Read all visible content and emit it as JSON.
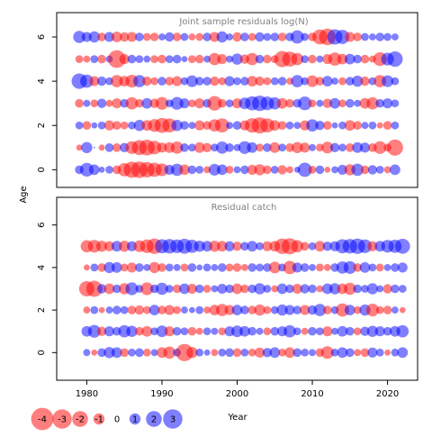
{
  "chart_data": {
    "type": "scatter",
    "ylabel": "Age",
    "xlabel": "Year",
    "x_ticks": [
      1980,
      1990,
      2000,
      2010,
      2020
    ],
    "xlim": [
      1976,
      2024
    ],
    "colors": {
      "positive": "#0000ff",
      "negative": "#ff0000"
    },
    "panels": [
      {
        "title": "Joint sample residuals log(N)",
        "y_ticks": [
          0,
          2,
          4,
          6
        ],
        "ylim": [
          -0.8,
          7.1
        ],
        "ages": [
          0,
          1,
          2,
          3,
          4,
          5,
          6
        ],
        "years_from": 1979,
        "years_to": 2021,
        "residuals": {
          "0": [
            0.6,
            1.5,
            0.9,
            0.3,
            0.5,
            -0.6,
            -1.4,
            -2.1,
            -2.2,
            -1.9,
            -1.6,
            -1.3,
            0.8,
            1.2,
            -0.9,
            0.6,
            0.5,
            -0.4,
            1.1,
            0.9,
            -0.5,
            0.4,
            0.6,
            -0.8,
            -1.0,
            -0.6,
            0.5,
            -0.7,
            -0.4,
            0.3,
            1.6,
            -0.5,
            0.6,
            -0.3,
            0.4,
            0.8,
            -1.0,
            1.2,
            -0.6,
            0.7,
            0.5,
            -0.4,
            0.9
          ],
          "1": [
            -0.3,
            1.0,
            0.0,
            -0.3,
            0.6,
            -0.6,
            0.7,
            -1.3,
            -1.8,
            -2.0,
            -1.5,
            -0.8,
            -0.9,
            -1.2,
            0.6,
            0.5,
            -0.9,
            -0.7,
            0.5,
            1.2,
            0.6,
            0.4,
            1.3,
            0.9,
            -0.5,
            0.6,
            -0.9,
            0.5,
            -0.6,
            -1.0,
            -0.8,
            0.4,
            -0.5,
            -1.1,
            0.7,
            0.5,
            -0.6,
            0.9,
            0.8,
            -0.6,
            -1.3,
            -0.5,
            -2.1
          ],
          "2": [
            0.5,
            -0.6,
            0.3,
            0.5,
            -0.8,
            -0.6,
            -0.5,
            0.5,
            1.0,
            -0.9,
            -1.3,
            -1.8,
            -1.6,
            1.0,
            0.6,
            0.4,
            -0.8,
            -0.6,
            -1.2,
            -1.6,
            0.4,
            0.6,
            -0.8,
            -1.7,
            -2.1,
            -1.6,
            -0.9,
            -0.6,
            0.5,
            0.4,
            -0.8,
            1.2,
            0.7,
            -0.6,
            0.3,
            0.5,
            -0.9,
            -0.6,
            0.4,
            0.5,
            -0.3,
            -0.6,
            0.5
          ],
          "3": [
            -0.6,
            0.4,
            -0.5,
            0.7,
            -0.4,
            -0.8,
            0.6,
            -1.2,
            -0.6,
            0.9,
            -0.7,
            -1.3,
            0.5,
            1.3,
            0.8,
            -0.5,
            -0.8,
            0.6,
            -1.7,
            -0.6,
            0.5,
            -0.8,
            1.1,
            1.6,
            1.9,
            1.5,
            1.2,
            -0.9,
            -0.6,
            0.6,
            1.5,
            -0.5,
            0.4,
            -0.7,
            0.9,
            -0.5,
            0.6,
            0.4,
            -0.9,
            -1.2,
            0.6,
            0.8,
            0.5
          ],
          "4": [
            1.9,
            1.4,
            -0.8,
            0.7,
            0.5,
            -1.2,
            -0.9,
            -1.3,
            1.2,
            -0.7,
            -0.5,
            0.6,
            -0.6,
            -0.8,
            0.5,
            1.1,
            0.6,
            0.6,
            -0.7,
            -0.5,
            0.8,
            0.5,
            0.6,
            -0.9,
            -0.7,
            -0.5,
            0.5,
            0.6,
            -0.4,
            1.2,
            0.5,
            -1.1,
            -0.6,
            0.9,
            0.4,
            -0.5,
            0.6,
            1.0,
            -0.7,
            0.5,
            -1.2,
            1.1,
            0.5
          ],
          "5": [
            -0.5,
            -0.4,
            0.5,
            -0.6,
            0.4,
            -2.5,
            -0.8,
            0.6,
            0.5,
            0.4,
            -0.5,
            -0.6,
            0.5,
            0.6,
            0.3,
            -0.5,
            -0.6,
            0.4,
            -1.2,
            -0.8,
            0.4,
            1.0,
            -0.7,
            -1.2,
            0.6,
            -0.6,
            -0.5,
            -2.1,
            -1.8,
            -1.2,
            0.5,
            -0.6,
            0.4,
            -0.8,
            -1.4,
            -0.9,
            0.9,
            0.6,
            -0.6,
            -0.4,
            -1.5,
            1.3,
            1.9
          ],
          "6": [
            1.2,
            0.8,
            1.0,
            -0.6,
            0.8,
            -0.9,
            -0.7,
            -0.8,
            0.6,
            -0.5,
            -0.6,
            0.4,
            0.7,
            -0.6,
            0.5,
            -0.4,
            -0.5,
            0.6,
            -0.8,
            1.0,
            0.4,
            -0.7,
            0.6,
            -0.5,
            0.7,
            0.5,
            0.6,
            -0.6,
            0.6,
            1.4,
            0.5,
            -0.6,
            -1.8,
            -2.2,
            1.9,
            1.6,
            -0.8,
            -0.6,
            0.5,
            0.4,
            0.6,
            0.5,
            0.4
          ]
        }
      },
      {
        "title": "Residual catch",
        "y_ticks": [
          0,
          2,
          4,
          6
        ],
        "ylim": [
          -1.3,
          7.3
        ],
        "ages": [
          0,
          1,
          2,
          3,
          4,
          5
        ],
        "years_from": 1980,
        "years_to": 2022,
        "residuals": {
          "0": [
            0.4,
            -0.3,
            0.6,
            1.0,
            0.9,
            -0.6,
            0.5,
            0.6,
            -0.5,
            0.4,
            -0.9,
            -1.2,
            0.5,
            -2.4,
            -1.0,
            0.5,
            0.3,
            -0.4,
            0.5,
            0.6,
            -0.6,
            0.5,
            -0.5,
            -0.8,
            0.7,
            0.9,
            -0.5,
            -0.9,
            0.6,
            0.5,
            0.4,
            -0.6,
            -1.3,
            0.5,
            0.9,
            0.6,
            -0.4,
            -0.6,
            0.8,
            0.5,
            -0.3,
            0.5,
            0.9
          ],
          "1": [
            0.9,
            1.3,
            -0.7,
            0.8,
            0.6,
            1.2,
            1.0,
            -0.6,
            -0.9,
            0.5,
            1.1,
            -0.8,
            0.6,
            0.5,
            -0.6,
            -0.4,
            0.5,
            0.4,
            -0.5,
            0.8,
            1.1,
            0.9,
            0.6,
            0.4,
            -0.5,
            0.6,
            0.8,
            1.2,
            0.5,
            -0.4,
            0.6,
            0.5,
            -0.8,
            0.4,
            0.9,
            0.6,
            -0.5,
            0.7,
            1.0,
            0.8,
            0.6,
            0.9,
            1.2
          ],
          "2": [
            -0.4,
            0.5,
            -0.3,
            0.4,
            0.6,
            0.5,
            -0.6,
            -0.7,
            -0.5,
            0.9,
            -0.6,
            -0.8,
            -0.5,
            0.4,
            0.3,
            0.5,
            -0.4,
            -0.9,
            -1.2,
            -0.8,
            0.9,
            0.6,
            -0.6,
            -1.0,
            -0.5,
            0.5,
            1.0,
            0.8,
            0.6,
            -0.8,
            0.7,
            1.2,
            -0.6,
            0.5,
            -1.4,
            0.9,
            -0.5,
            1.0,
            -1.3,
            -0.5,
            -0.6,
            0.4,
            -0.3
          ],
          "3": [
            -1.9,
            -2.1,
            0.7,
            -0.9,
            0.6,
            -1.0,
            1.3,
            0.5,
            -1.3,
            0.6,
            1.2,
            0.5,
            -0.6,
            0.9,
            -0.8,
            0.6,
            -0.5,
            0.4,
            0.8,
            0.6,
            -0.9,
            -0.6,
            0.6,
            1.0,
            0.5,
            -0.4,
            0.9,
            0.6,
            -0.8,
            0.7,
            0.6,
            -0.4,
            0.9,
            1.0,
            -0.9,
            -1.2,
            0.6,
            0.5,
            1.0,
            0.4,
            -0.7,
            0.6,
            0.5
          ],
          "4": [
            -0.3,
            0.5,
            -0.6,
            1.0,
            0.9,
            -0.5,
            -0.8,
            0.6,
            0.4,
            -1.0,
            -0.6,
            0.5,
            0.4,
            -0.5,
            0.6,
            0.3,
            0.5,
            0.4,
            0.6,
            -0.5,
            -0.6,
            -0.4,
            0.6,
            0.5,
            0.6,
            -1.1,
            0.5,
            -1.4,
            0.8,
            0.6,
            0.4,
            -0.5,
            -0.4,
            0.6,
            1.2,
            1.3,
            -0.6,
            0.9,
            0.5,
            -0.5,
            0.4,
            0.6,
            0.8
          ],
          "5": [
            -1.2,
            -1.3,
            -1.0,
            -0.8,
            0.9,
            -1.0,
            0.8,
            -1.1,
            -1.5,
            -1.9,
            1.6,
            1.7,
            1.5,
            1.8,
            1.4,
            1.0,
            0.9,
            -1.0,
            -0.9,
            0.8,
            -0.7,
            0.6,
            0.9,
            0.5,
            -0.8,
            -0.9,
            -1.9,
            -2.1,
            -1.2,
            -0.6,
            0.5,
            -0.9,
            0.7,
            0.8,
            1.6,
            1.7,
            1.9,
            1.5,
            -0.8,
            0.9,
            1.3,
            1.4,
            1.8
          ]
        }
      }
    ],
    "legend": {
      "labels": [
        "-4",
        "-3",
        "-2",
        "-1",
        "0",
        "1",
        "2",
        "3"
      ],
      "values": [
        -4,
        -3,
        -2,
        -1,
        0,
        1,
        2,
        3
      ]
    }
  }
}
